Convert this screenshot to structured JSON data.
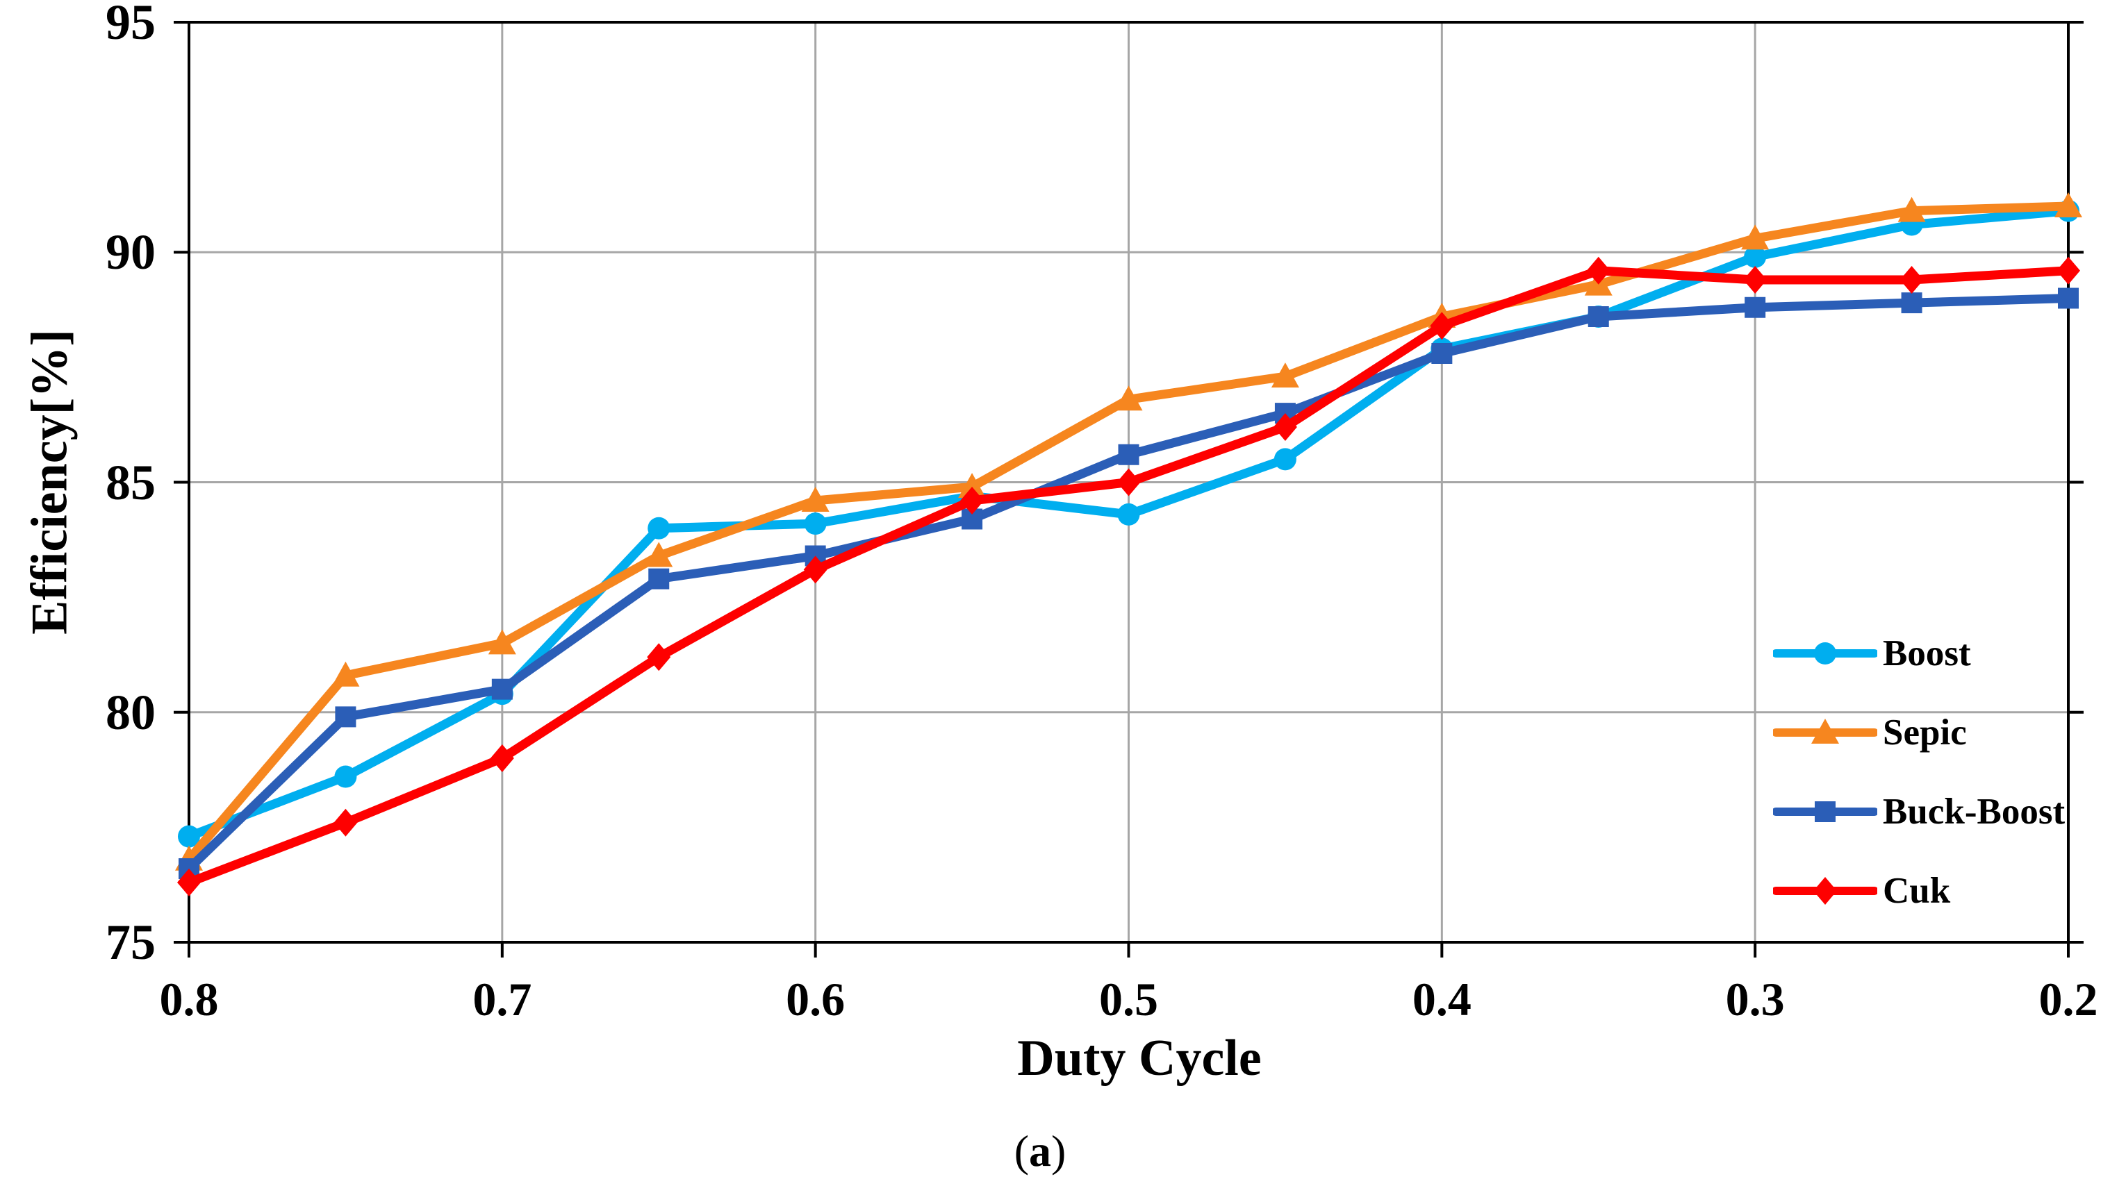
{
  "figure": {
    "caption_open": "(",
    "caption_letter": "a",
    "caption_close": ")"
  },
  "chart_data": {
    "type": "line",
    "title": "",
    "xlabel": "Duty Cycle",
    "ylabel": "Efficiency[%]",
    "x_axis_reversed": true,
    "x_min": 0.2,
    "x_max": 0.8,
    "ylim": [
      75,
      95
    ],
    "grid": true,
    "legend_position": "inside-right",
    "x": [
      0.8,
      0.75,
      0.7,
      0.65,
      0.6,
      0.55,
      0.5,
      0.45,
      0.4,
      0.35,
      0.3,
      0.25,
      0.2
    ],
    "x_tick_labels": [
      "0.8",
      "0.7",
      "0.6",
      "0.5",
      "0.4",
      "0.3",
      "0.2"
    ],
    "x_tick_values": [
      0.8,
      0.7,
      0.6,
      0.5,
      0.4,
      0.3,
      0.2
    ],
    "y_tick_labels": [
      "95",
      "90",
      "85",
      "80",
      "75"
    ],
    "y_tick_values": [
      95,
      90,
      85,
      80,
      75
    ],
    "series": [
      {
        "name": "Boost",
        "marker": "circle",
        "color": "#00AEEF",
        "values": [
          77.3,
          78.6,
          80.4,
          84.0,
          84.1,
          84.7,
          84.3,
          85.5,
          87.9,
          88.6,
          89.9,
          90.6,
          90.9
        ]
      },
      {
        "name": "Sepic",
        "marker": "triangle-up",
        "color": "#F6861F",
        "values": [
          76.8,
          80.8,
          81.5,
          83.4,
          84.6,
          84.9,
          86.8,
          87.3,
          88.6,
          89.3,
          90.3,
          90.9,
          91.0
        ]
      },
      {
        "name": "Buck-Boost",
        "marker": "square",
        "color": "#2B5EB7",
        "values": [
          76.6,
          79.9,
          80.5,
          82.9,
          83.4,
          84.2,
          85.6,
          86.5,
          87.8,
          88.6,
          88.8,
          88.9,
          89.0
        ]
      },
      {
        "name": "Cuk",
        "marker": "diamond",
        "color": "#FE0000",
        "values": [
          76.3,
          77.6,
          79.0,
          81.2,
          83.1,
          84.6,
          85.0,
          86.2,
          88.4,
          89.6,
          89.4,
          89.4,
          89.6
        ]
      }
    ],
    "colors": {
      "grid": "#A6A6A6",
      "axis": "#000000",
      "text": "#000000"
    }
  }
}
